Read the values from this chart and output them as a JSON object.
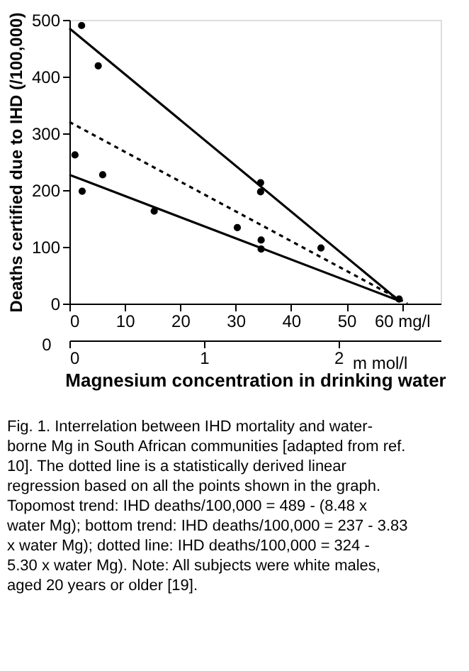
{
  "chart_data": {
    "type": "scatter",
    "ylabel": "Deaths certified due to IHD (/100,000)",
    "xlabel": "Magnesium concentration in drinking water",
    "x2label": "m mol/l",
    "xlim": [
      0,
      67
    ],
    "xticks": [
      0,
      10,
      20,
      30,
      40,
      50,
      {
        "value": 60,
        "label": "60 mg/l"
      }
    ],
    "ylim": [
      0,
      500
    ],
    "yticks": [
      0,
      100,
      200,
      300,
      400,
      500
    ],
    "x2lim": [
      0,
      2.76
    ],
    "x2ticks": [
      0,
      1,
      2
    ],
    "grid": false,
    "marker": "circle",
    "series": [
      {
        "color": "#000000",
        "x": [
          2.2,
          5.2,
          1.0,
          2.3,
          6.0,
          15.3,
          34.5,
          34.5,
          30.3,
          34.6,
          34.6,
          45.4,
          59.5
        ],
        "values": [
          490,
          419,
          262,
          198,
          227,
          163,
          213,
          197,
          134,
          112,
          96,
          98,
          8
        ]
      },
      {
        "type": "line",
        "color": "#000000",
        "line_style": "solid",
        "marker": "none",
        "x": [
          0,
          59.5
        ],
        "values": [
          485,
          5
        ]
      },
      {
        "type": "line",
        "color": "#000000",
        "line_style": "dotted",
        "marker": "none",
        "x": [
          0,
          61
        ],
        "values": [
          320,
          0
        ]
      },
      {
        "type": "line",
        "color": "#000000",
        "line_style": "solid",
        "marker": "none",
        "x": [
          0,
          59.5
        ],
        "values": [
          227,
          5
        ]
      }
    ],
    "annotations": [
      "0",
      "Fig. 1.  Interrelation between IHD mortality and water-borne Mg in South African communities [adapted from ref. 10].  The dotted line is a statistically derived linear regression based on all the points shown in the graph. Topomost trend:  IHD deaths/100,000 = 489 - (8.48 x water Mg); bottom trend: IHD deaths/100,000 = 237 - 3.83 x water Mg); dotted line: IHD deaths/100,000 = 324 - 5.30 x water Mg).  Note: All subjects were white males, aged 20 years or older [19]."
    ]
  }
}
